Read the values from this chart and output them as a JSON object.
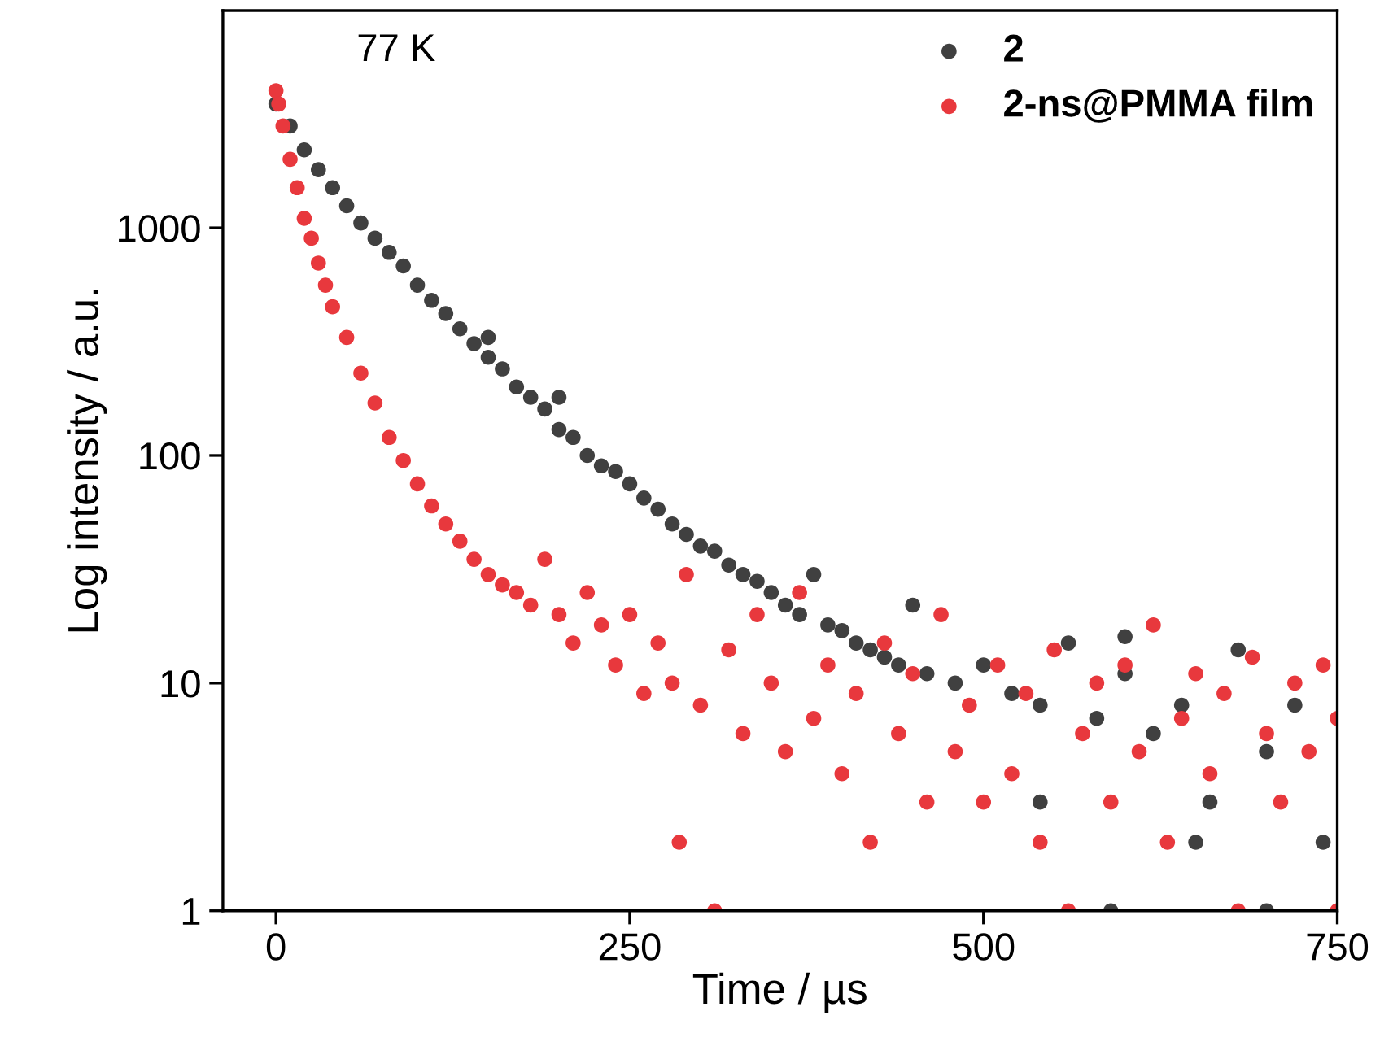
{
  "chart_data": {
    "type": "scatter",
    "xlabel": "Time / µs",
    "ylabel": "Log intensity / a.u.",
    "log": "y",
    "xlim": [
      -37.5,
      750
    ],
    "xticks": [
      0,
      250,
      500,
      750
    ],
    "ylim": [
      1,
      9000
    ],
    "yticks": [
      1,
      10,
      100,
      1000
    ],
    "grid": false,
    "legend": "top right",
    "marker": "circle",
    "annotations": [
      "77 K"
    ],
    "series": [
      {
        "name": "2",
        "color": "#404040",
        "x": [
          0,
          10,
          20,
          30,
          40,
          50,
          60,
          70,
          80,
          90,
          100,
          110,
          120,
          130,
          140,
          150,
          150,
          160,
          170,
          180,
          190,
          200,
          200,
          210,
          220,
          230,
          240,
          250,
          260,
          270,
          280,
          290,
          300,
          310,
          320,
          330,
          340,
          350,
          360,
          370,
          380,
          390,
          400,
          410,
          420,
          430,
          440,
          450,
          460,
          480,
          500,
          520,
          540,
          540,
          560,
          580,
          590,
          600,
          600,
          620,
          640,
          650,
          660,
          680,
          700,
          700,
          720,
          740
        ],
        "values": [
          3500,
          2800,
          2200,
          1800,
          1500,
          1250,
          1050,
          900,
          780,
          680,
          560,
          480,
          420,
          360,
          310,
          270,
          330,
          240,
          200,
          180,
          160,
          130,
          180,
          120,
          100,
          90,
          85,
          75,
          65,
          58,
          50,
          45,
          40,
          38,
          33,
          30,
          28,
          25,
          22,
          20,
          30,
          18,
          17,
          15,
          14,
          13,
          12,
          22,
          11,
          10,
          12,
          9,
          8,
          3,
          15,
          7,
          1,
          11,
          16,
          6,
          8,
          2,
          3,
          14,
          5,
          1,
          8,
          2
        ]
      },
      {
        "name": "2-ns@PMMA film",
        "color": "#e8383d",
        "x": [
          0,
          2,
          5,
          10,
          15,
          20,
          25,
          30,
          35,
          40,
          50,
          60,
          70,
          80,
          90,
          100,
          110,
          120,
          130,
          140,
          150,
          160,
          170,
          180,
          190,
          200,
          210,
          220,
          230,
          240,
          250,
          260,
          270,
          280,
          285,
          290,
          300,
          310,
          320,
          330,
          340,
          350,
          360,
          370,
          380,
          390,
          400,
          410,
          420,
          430,
          440,
          450,
          460,
          470,
          480,
          490,
          500,
          510,
          520,
          530,
          540,
          550,
          560,
          570,
          580,
          590,
          600,
          610,
          620,
          630,
          640,
          650,
          660,
          670,
          680,
          690,
          700,
          710,
          720,
          730,
          740,
          750,
          750
        ],
        "values": [
          4000,
          3500,
          2800,
          2000,
          1500,
          1100,
          900,
          700,
          560,
          450,
          330,
          230,
          170,
          120,
          95,
          75,
          60,
          50,
          42,
          35,
          30,
          27,
          25,
          22,
          35,
          20,
          15,
          25,
          18,
          12,
          20,
          9,
          15,
          10,
          2,
          30,
          8,
          1,
          14,
          6,
          20,
          10,
          5,
          25,
          7,
          12,
          4,
          9,
          2,
          15,
          6,
          11,
          3,
          20,
          5,
          8,
          3,
          12,
          4,
          9,
          2,
          14,
          1,
          6,
          10,
          3,
          12,
          5,
          18,
          2,
          7,
          11,
          4,
          9,
          1,
          13,
          6,
          3,
          10,
          5,
          12,
          7,
          1
        ]
      }
    ]
  }
}
